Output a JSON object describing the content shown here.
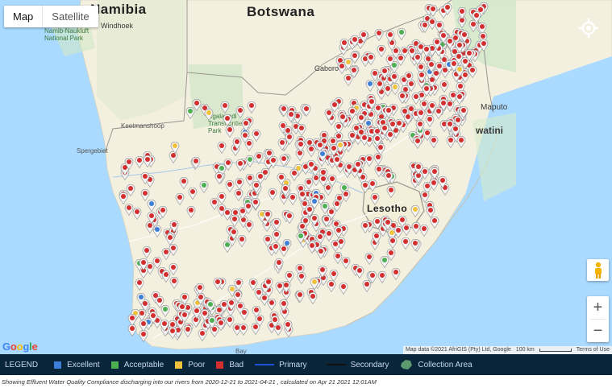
{
  "map_type": {
    "map_label": "Map",
    "satellite_label": "Satellite",
    "selected": "Map"
  },
  "labels": {
    "namibia": "Namibia",
    "botswana": "Botswana",
    "lesotho": "Lesotho",
    "swazi": "watini",
    "windhoek": "Windhoek",
    "gaborone": "Gaboro",
    "maputo": "Maputo",
    "keetmanshoop": "Keetmanshoop",
    "spergebiet": "Spergebiet",
    "namib_park": "Namib-Naukluft\nNational Park",
    "kgalagadi": "Kgalagadi\nTransfrontier\nPark",
    "bay": "Bay"
  },
  "attribution": {
    "map_data": "Map data ©2021 AfriGIS (Pty) Ltd, Google",
    "scale": "100 km",
    "terms": "Terms of Use"
  },
  "google_logo": "Google",
  "zoom": {
    "in": "+",
    "out": "−"
  },
  "legend": {
    "title": "LEGEND",
    "items": [
      {
        "label": "Excellent",
        "color": "#3d7fd6"
      },
      {
        "label": "Acceptable",
        "color": "#4caf50"
      },
      {
        "label": "Poor",
        "color": "#f0c23b"
      },
      {
        "label": "Bad",
        "color": "#d32f2f"
      }
    ],
    "primary": {
      "label": "Primary",
      "color": "#1e4fd8"
    },
    "secondary": {
      "label": "Secondary",
      "color": "#111111"
    },
    "collection": {
      "label": "Collection Area",
      "color": "#5a9a6e"
    }
  },
  "caption": "Showing Effluent Water Quality Compliance discharging into our rivers from 2020-12-21 to 2021-04-21 , calculated on Apr 21 2021 12:01AM",
  "colors": {
    "bad": "#d32f2f",
    "excellent": "#3d7fd6",
    "acceptable": "#4caf50",
    "poor": "#f0c23b"
  }
}
